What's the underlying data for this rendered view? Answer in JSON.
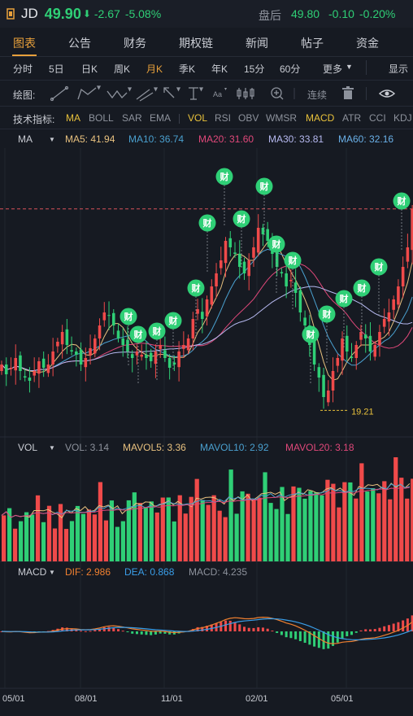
{
  "header": {
    "symbol": "JD",
    "price": "49.90",
    "change": "-2.67",
    "change_pct": "-5.08%",
    "after_hours_label": "盘后",
    "after_price": "49.80",
    "after_change": "-0.10",
    "after_change_pct": "-0.20%",
    "colors": {
      "down": "#2fcf76",
      "up": "#f04a4a",
      "accent": "#e8a03b"
    }
  },
  "tabs": [
    "图表",
    "公告",
    "财务",
    "期权链",
    "新闻",
    "帖子",
    "资金"
  ],
  "periods": [
    "分时",
    "5日",
    "日K",
    "周K",
    "月K",
    "季K",
    "年K",
    "15分",
    "60分",
    "更多",
    "显示"
  ],
  "draw_label": "绘图:",
  "draw_continuous": "连续",
  "indicators_label": "技术指标:",
  "indicators": [
    "MA",
    "BOLL",
    "SAR",
    "EMA",
    "VOL",
    "RSI",
    "OBV",
    "WMSR",
    "MACD",
    "ATR",
    "CCI",
    "KDJ"
  ],
  "ma_legend": {
    "name": "MA",
    "items": [
      "MA5: 41.94",
      "MA10: 36.74",
      "MA20: 31.60",
      "MA30: 33.81",
      "MA60: 32.16"
    ],
    "colors": [
      "#e8c17f",
      "#4aa0cf",
      "#e0487a",
      "#b6b9f0",
      "#6ab0e8"
    ]
  },
  "vol_legend": {
    "name": "VOL",
    "items": [
      "VOL: 3.14",
      "MAVOL5: 3.36",
      "MAVOL10: 2.92",
      "MAVOL20: 3.18"
    ],
    "colors": [
      "#8d929c",
      "#e8c17f",
      "#4aa0cf",
      "#e0487a"
    ]
  },
  "macd_legend": {
    "name": "MACD",
    "items": [
      "DIF: 2.986",
      "DEA: 0.868",
      "MACD: 4.235"
    ],
    "colors": [
      "#f08030",
      "#3a9ee8",
      "#8d929c"
    ]
  },
  "x_labels": [
    "05/01",
    "08/01",
    "11/01",
    "02/01",
    "05/01"
  ],
  "low_marker": "19.21",
  "event_badge": "财",
  "chart_data": {
    "type": "candlestick",
    "y_low_mark": 19.21,
    "reference_price": 49.9,
    "closes": [
      26,
      24.5,
      25.5,
      27,
      25,
      24,
      23.5,
      25,
      26.5,
      25.5,
      26,
      28,
      29.5,
      31,
      29,
      28,
      27.5,
      26,
      27,
      28.5,
      30,
      32,
      34,
      33.5,
      32,
      30,
      29,
      28,
      27,
      28,
      27.5,
      27,
      26.5,
      28,
      29,
      27,
      25.5,
      26,
      28,
      29,
      30,
      33,
      34.5,
      33,
      36,
      38,
      40,
      42,
      45,
      44,
      43,
      41,
      40,
      42,
      44,
      47,
      46,
      45,
      43,
      41,
      40,
      38,
      39,
      37,
      34,
      32,
      29,
      26,
      24,
      21,
      22,
      25,
      27,
      30,
      28,
      27,
      29,
      31,
      30,
      28,
      29,
      31,
      33,
      34,
      36,
      38,
      41,
      44,
      49.9
    ],
    "volume_bars": 73,
    "macd": {
      "dif": 2.986,
      "dea": 0.868,
      "macd": 4.235
    }
  }
}
